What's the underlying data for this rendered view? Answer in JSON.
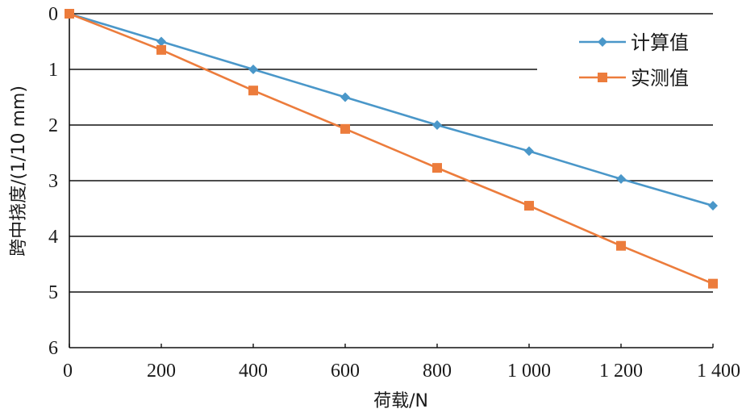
{
  "chart_data": {
    "type": "line",
    "x": [
      0,
      200,
      400,
      600,
      800,
      1000,
      1200,
      1400
    ],
    "x_tick_labels": [
      "0",
      "200",
      "400",
      "600",
      "800",
      "1 000",
      "1 200",
      "1 400"
    ],
    "series": [
      {
        "name": "计算值",
        "color": "#4a97c9",
        "marker": "diamond",
        "values": [
          0,
          0.5,
          1.0,
          1.5,
          2.0,
          2.47,
          2.97,
          3.45
        ]
      },
      {
        "name": "实测值",
        "color": "#ec7c3c",
        "marker": "square",
        "values": [
          0,
          0.65,
          1.38,
          2.07,
          2.77,
          3.45,
          4.17,
          4.85
        ]
      }
    ],
    "xlabel": "荷载/N",
    "ylabel": "跨中挠度/(1/10 mm)",
    "xlim": [
      0,
      1400
    ],
    "ylim": [
      0,
      6
    ],
    "y_inverted": true,
    "y_tick_labels": [
      "0",
      "1",
      "2",
      "3",
      "4",
      "5",
      "6"
    ],
    "grid": "horizontal",
    "legend_position": "top-right"
  }
}
